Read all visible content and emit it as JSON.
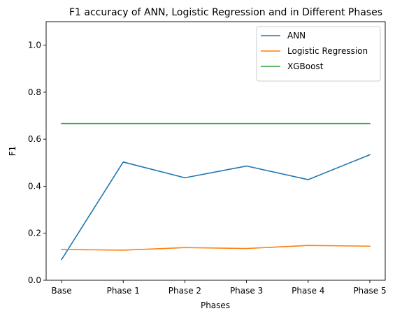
{
  "chart_data": {
    "type": "line",
    "title": "F1 accuracy of ANN, Logistic Regression and in Different Phases",
    "xlabel": "Phases",
    "ylabel": "F1",
    "categories": [
      "Base",
      "Phase 1",
      "Phase 2",
      "Phase 3",
      "Phase 4",
      "Phase 5"
    ],
    "ylim": [
      0.0,
      1.1
    ],
    "yticks": [
      0.0,
      0.2,
      0.4,
      0.6,
      0.8,
      1.0
    ],
    "ytick_labels": [
      "0.0",
      "0.2",
      "0.4",
      "0.6",
      "0.8",
      "1.0"
    ],
    "grid": false,
    "legend_position": "top-right",
    "series": [
      {
        "name": "ANN",
        "color": "#1f77b4",
        "values": [
          0.088,
          0.503,
          0.436,
          0.486,
          0.428,
          0.534
        ]
      },
      {
        "name": "Logistic Regression",
        "color": "#ff7f0e",
        "values": [
          0.131,
          0.128,
          0.139,
          0.135,
          0.148,
          0.145
        ]
      },
      {
        "name": "XGBoost",
        "color": "#2ca02c",
        "values": [
          0.667,
          0.667,
          0.667,
          0.667,
          0.667,
          0.667
        ]
      }
    ]
  }
}
